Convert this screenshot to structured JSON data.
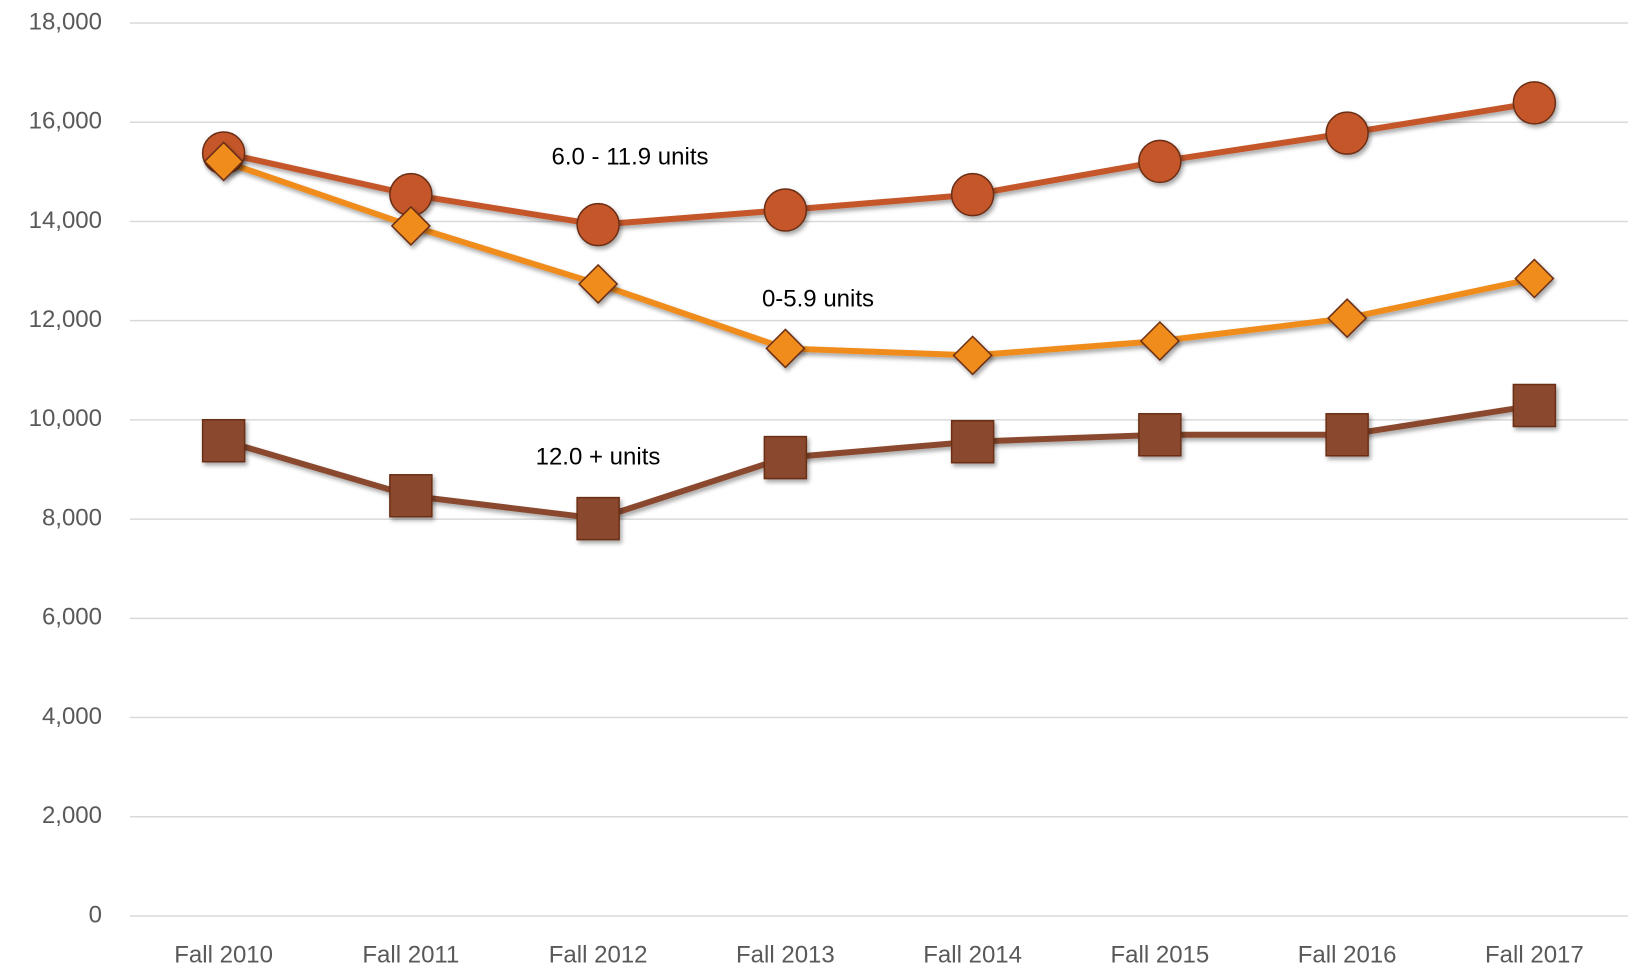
{
  "chart_data": {
    "type": "line",
    "categories": [
      "Fall 2010",
      "Fall 2011",
      "Fall 2012",
      "Fall 2013",
      "Fall 2014",
      "Fall 2015",
      "Fall 2016",
      "Fall 2017"
    ],
    "series": [
      {
        "name": "6.0 - 11.9 units",
        "color": "#c4562a",
        "marker": "circle",
        "values": [
          15380,
          14540,
          13935,
          14230,
          14540,
          15210,
          15780,
          16390
        ]
      },
      {
        "name": "0-5.9 units",
        "color": "#ef8c1c",
        "marker": "diamond",
        "values": [
          15210,
          13910,
          12740,
          11440,
          11300,
          11590,
          12050,
          12850
        ]
      },
      {
        "name": "12.0 + units",
        "color": "#8a4a2e",
        "marker": "square",
        "values": [
          9580,
          8470,
          8010,
          9240,
          9560,
          9700,
          9700,
          10290
        ]
      }
    ],
    "ylim": [
      0,
      18000
    ],
    "yticks": [
      {
        "value": 0,
        "label": "0"
      },
      {
        "value": 2000,
        "label": "2,000"
      },
      {
        "value": 4000,
        "label": "4,000"
      },
      {
        "value": 6000,
        "label": "6,000"
      },
      {
        "value": 8000,
        "label": "8,000"
      },
      {
        "value": 10000,
        "label": "10,000"
      },
      {
        "value": 12000,
        "label": "12,000"
      },
      {
        "value": 14000,
        "label": "14,000"
      },
      {
        "value": 16000,
        "label": "16,000"
      },
      {
        "value": 18000,
        "label": "18,000"
      }
    ],
    "grid": true
  }
}
